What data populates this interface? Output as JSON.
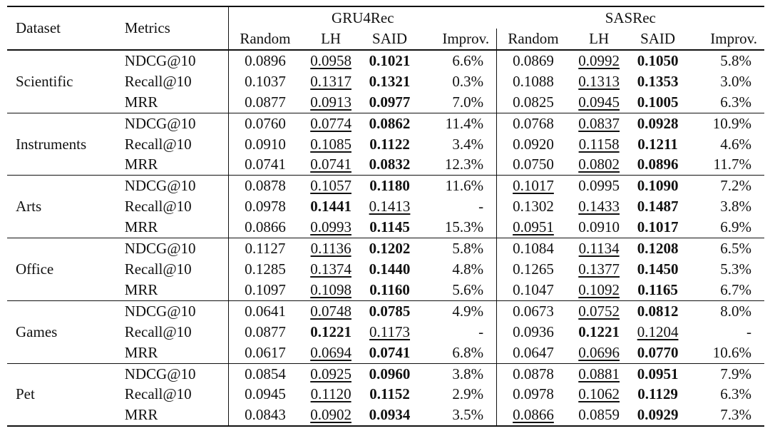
{
  "header": {
    "dataset": "Dataset",
    "metrics": "Metrics",
    "model_a": "GRU4Rec",
    "model_b": "SASRec",
    "cols": [
      "Random",
      "LH",
      "SAID",
      "Improv."
    ]
  },
  "groups": [
    {
      "dataset": "Scientific",
      "rows": [
        {
          "metric": "NDCG@10",
          "a": [
            "0.0896",
            "0.0958",
            "0.1021",
            "6.6%"
          ],
          "b": [
            "0.0869",
            "0.0992",
            "0.1050",
            "5.8%"
          ]
        },
        {
          "metric": "Recall@10",
          "a": [
            "0.1037",
            "0.1317",
            "0.1321",
            "0.3%"
          ],
          "b": [
            "0.1088",
            "0.1313",
            "0.1353",
            "3.0%"
          ]
        },
        {
          "metric": "MRR",
          "a": [
            "0.0877",
            "0.0913",
            "0.0977",
            "7.0%"
          ],
          "b": [
            "0.0825",
            "0.0945",
            "0.1005",
            "6.3%"
          ]
        }
      ]
    },
    {
      "dataset": "Instruments",
      "rows": [
        {
          "metric": "NDCG@10",
          "a": [
            "0.0760",
            "0.0774",
            "0.0862",
            "11.4%"
          ],
          "b": [
            "0.0768",
            "0.0837",
            "0.0928",
            "10.9%"
          ]
        },
        {
          "metric": "Recall@10",
          "a": [
            "0.0910",
            "0.1085",
            "0.1122",
            "3.4%"
          ],
          "b": [
            "0.0920",
            "0.1158",
            "0.1211",
            "4.6%"
          ]
        },
        {
          "metric": "MRR",
          "a": [
            "0.0741",
            "0.0741",
            "0.0832",
            "12.3%"
          ],
          "b": [
            "0.0750",
            "0.0802",
            "0.0896",
            "11.7%"
          ]
        }
      ]
    },
    {
      "dataset": "Arts",
      "rows": [
        {
          "metric": "NDCG@10",
          "a": [
            "0.0878",
            "0.1057",
            "0.1180",
            "11.6%"
          ],
          "b": [
            "0.1017",
            "0.0995",
            "0.1090",
            "7.2%"
          ]
        },
        {
          "metric": "Recall@10",
          "a": [
            "0.0978",
            "0.1441",
            "0.1413",
            "-"
          ],
          "b": [
            "0.1302",
            "0.1433",
            "0.1487",
            "3.8%"
          ]
        },
        {
          "metric": "MRR",
          "a": [
            "0.0866",
            "0.0993",
            "0.1145",
            "15.3%"
          ],
          "b": [
            "0.0951",
            "0.0910",
            "0.1017",
            "6.9%"
          ]
        }
      ]
    },
    {
      "dataset": "Office",
      "rows": [
        {
          "metric": "NDCG@10",
          "a": [
            "0.1127",
            "0.1136",
            "0.1202",
            "5.8%"
          ],
          "b": [
            "0.1084",
            "0.1134",
            "0.1208",
            "6.5%"
          ]
        },
        {
          "metric": "Recall@10",
          "a": [
            "0.1285",
            "0.1374",
            "0.1440",
            "4.8%"
          ],
          "b": [
            "0.1265",
            "0.1377",
            "0.1450",
            "5.3%"
          ]
        },
        {
          "metric": "MRR",
          "a": [
            "0.1097",
            "0.1098",
            "0.1160",
            "5.6%"
          ],
          "b": [
            "0.1047",
            "0.1092",
            "0.1165",
            "6.7%"
          ]
        }
      ]
    },
    {
      "dataset": "Games",
      "rows": [
        {
          "metric": "NDCG@10",
          "a": [
            "0.0641",
            "0.0748",
            "0.0785",
            "4.9%"
          ],
          "b": [
            "0.0673",
            "0.0752",
            "0.0812",
            "8.0%"
          ]
        },
        {
          "metric": "Recall@10",
          "a": [
            "0.0877",
            "0.1221",
            "0.1173",
            "-"
          ],
          "b": [
            "0.0936",
            "0.1221",
            "0.1204",
            "-"
          ]
        },
        {
          "metric": "MRR",
          "a": [
            "0.0617",
            "0.0694",
            "0.0741",
            "6.8%"
          ],
          "b": [
            "0.0647",
            "0.0696",
            "0.0770",
            "10.6%"
          ]
        }
      ]
    },
    {
      "dataset": "Pet",
      "rows": [
        {
          "metric": "NDCG@10",
          "a": [
            "0.0854",
            "0.0925",
            "0.0960",
            "3.8%"
          ],
          "b": [
            "0.0878",
            "0.0881",
            "0.0951",
            "7.9%"
          ]
        },
        {
          "metric": "Recall@10",
          "a": [
            "0.0945",
            "0.1120",
            "0.1152",
            "2.9%"
          ],
          "b": [
            "0.0978",
            "0.1062",
            "0.1129",
            "6.3%"
          ]
        },
        {
          "metric": "MRR",
          "a": [
            "0.0843",
            "0.0902",
            "0.0934",
            "3.5%"
          ],
          "b": [
            "0.0866",
            "0.0859",
            "0.0929",
            "7.3%"
          ]
        }
      ]
    }
  ],
  "styles": {
    "bold": [
      [
        0,
        0,
        "a",
        2
      ],
      [
        0,
        0,
        "b",
        2
      ],
      [
        0,
        1,
        "a",
        2
      ],
      [
        0,
        1,
        "b",
        2
      ],
      [
        0,
        2,
        "a",
        2
      ],
      [
        0,
        2,
        "b",
        2
      ],
      [
        1,
        0,
        "a",
        2
      ],
      [
        1,
        0,
        "b",
        2
      ],
      [
        1,
        1,
        "a",
        2
      ],
      [
        1,
        1,
        "b",
        2
      ],
      [
        1,
        2,
        "a",
        2
      ],
      [
        1,
        2,
        "b",
        2
      ],
      [
        2,
        0,
        "a",
        2
      ],
      [
        2,
        0,
        "b",
        2
      ],
      [
        2,
        1,
        "a",
        1
      ],
      [
        2,
        1,
        "b",
        2
      ],
      [
        2,
        2,
        "a",
        2
      ],
      [
        2,
        2,
        "b",
        2
      ],
      [
        3,
        0,
        "a",
        2
      ],
      [
        3,
        0,
        "b",
        2
      ],
      [
        3,
        1,
        "a",
        2
      ],
      [
        3,
        1,
        "b",
        2
      ],
      [
        3,
        2,
        "a",
        2
      ],
      [
        3,
        2,
        "b",
        2
      ],
      [
        4,
        0,
        "a",
        2
      ],
      [
        4,
        0,
        "b",
        2
      ],
      [
        4,
        1,
        "a",
        1
      ],
      [
        4,
        1,
        "b",
        1
      ],
      [
        4,
        2,
        "a",
        2
      ],
      [
        4,
        2,
        "b",
        2
      ],
      [
        5,
        0,
        "a",
        2
      ],
      [
        5,
        0,
        "b",
        2
      ],
      [
        5,
        1,
        "a",
        2
      ],
      [
        5,
        1,
        "b",
        2
      ],
      [
        5,
        2,
        "a",
        2
      ],
      [
        5,
        2,
        "b",
        2
      ]
    ],
    "underline": [
      [
        0,
        0,
        "a",
        1
      ],
      [
        0,
        0,
        "b",
        1
      ],
      [
        0,
        1,
        "a",
        1
      ],
      [
        0,
        1,
        "b",
        1
      ],
      [
        0,
        2,
        "a",
        1
      ],
      [
        0,
        2,
        "b",
        1
      ],
      [
        1,
        0,
        "a",
        1
      ],
      [
        1,
        0,
        "b",
        1
      ],
      [
        1,
        1,
        "a",
        1
      ],
      [
        1,
        1,
        "b",
        1
      ],
      [
        1,
        2,
        "a",
        1
      ],
      [
        1,
        2,
        "b",
        1
      ],
      [
        2,
        0,
        "a",
        1
      ],
      [
        2,
        0,
        "b",
        0
      ],
      [
        2,
        1,
        "a",
        2
      ],
      [
        2,
        1,
        "b",
        1
      ],
      [
        2,
        2,
        "a",
        1
      ],
      [
        2,
        2,
        "b",
        0
      ],
      [
        3,
        0,
        "a",
        1
      ],
      [
        3,
        0,
        "b",
        1
      ],
      [
        3,
        1,
        "a",
        1
      ],
      [
        3,
        1,
        "b",
        1
      ],
      [
        3,
        2,
        "a",
        1
      ],
      [
        3,
        2,
        "b",
        1
      ],
      [
        4,
        0,
        "a",
        1
      ],
      [
        4,
        0,
        "b",
        1
      ],
      [
        4,
        1,
        "a",
        2
      ],
      [
        4,
        1,
        "b",
        2
      ],
      [
        4,
        2,
        "a",
        1
      ],
      [
        4,
        2,
        "b",
        1
      ],
      [
        5,
        0,
        "a",
        1
      ],
      [
        5,
        0,
        "b",
        1
      ],
      [
        5,
        1,
        "a",
        1
      ],
      [
        5,
        1,
        "b",
        1
      ],
      [
        5,
        2,
        "a",
        1
      ],
      [
        5,
        2,
        "b",
        0
      ]
    ]
  }
}
